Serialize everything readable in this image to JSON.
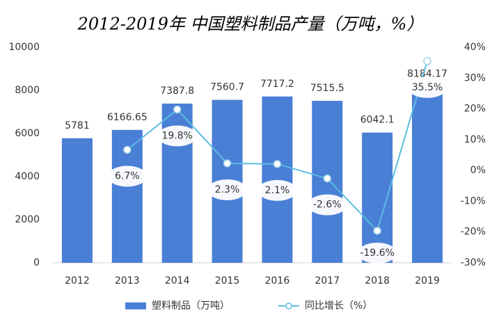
{
  "chart_data": {
    "type": "combo",
    "title": "2012-2019年 中国塑料制品产量（万吨，%）",
    "categories": [
      "2012",
      "2013",
      "2014",
      "2015",
      "2016",
      "2017",
      "2018",
      "2019"
    ],
    "series": [
      {
        "name": "塑料制品（万吨）",
        "type": "bar",
        "color": "#4a7fd6",
        "values": [
          5781,
          6166.65,
          7387.8,
          7560.7,
          7717.2,
          7515.5,
          6042.1,
          8184.17
        ]
      },
      {
        "name": "同比增长（%）",
        "type": "line",
        "axis": "y2",
        "color": "#5bbde0",
        "values": [
          null,
          6.7,
          19.8,
          2.3,
          2.1,
          -2.6,
          -19.6,
          35.5
        ],
        "value_labels": [
          null,
          "6.7%",
          "19.8%",
          "2.3%",
          "2.1%",
          "-2.6%",
          "-19.6%",
          "35.5%"
        ]
      }
    ],
    "ylim": [
      0,
      10000
    ],
    "yticks": [
      0,
      2000,
      4000,
      6000,
      8000,
      10000
    ],
    "y2lim": [
      -30,
      40
    ],
    "y2ticks": [
      {
        "value": -30,
        "label": "-30%"
      },
      {
        "value": -20,
        "label": "-20%"
      },
      {
        "value": -10,
        "label": "-10%"
      },
      {
        "value": 0,
        "label": "0%"
      },
      {
        "value": 10,
        "label": "10%"
      },
      {
        "value": 20,
        "label": "20%"
      },
      {
        "value": 30,
        "label": "30%"
      },
      {
        "value": 40,
        "label": "40%"
      }
    ],
    "grid": false,
    "legend": "bottom"
  }
}
